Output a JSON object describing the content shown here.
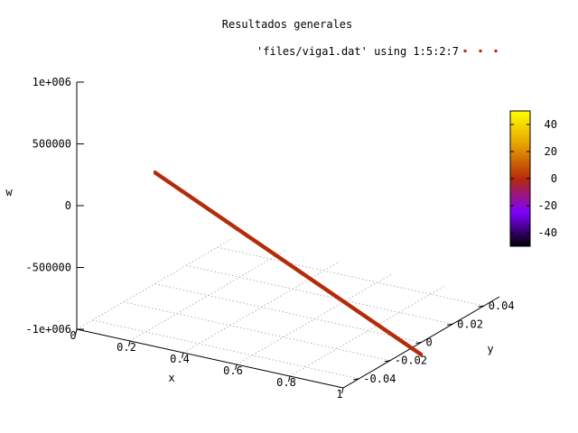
{
  "chart_data": {
    "type": "scatter",
    "title": "Resultados generales",
    "legend": {
      "label": "'files/viga1.dat' using 1:5:2:7",
      "placement": "top-right",
      "color": "#b52a0a"
    },
    "xlabel": "x",
    "ylabel": "y",
    "zlabel": "w",
    "xlim": [
      0,
      1
    ],
    "ylim": [
      -0.05,
      0.05
    ],
    "zlim": [
      -1500000,
      1000000
    ],
    "x_ticks": [
      "0",
      "0.2",
      "0.4",
      "0.6",
      "0.8",
      "1"
    ],
    "y_ticks": [
      "-0.04",
      "-0.02",
      "0",
      "0.02",
      "0.04"
    ],
    "z_ticks": [
      "1e+006",
      "500000",
      "0",
      "-500000",
      "-1e+006"
    ],
    "grid": true,
    "colorbar": {
      "ticks": [
        "40",
        "20",
        "0",
        "-20",
        "-40"
      ],
      "range": [
        -50,
        50
      ],
      "palette": [
        "#000000",
        "#7f00ff",
        "#b52a0a",
        "#e6a000",
        "#ffff00"
      ]
    },
    "series": [
      {
        "name": "'files/viga1.dat' using 1:5:2:7",
        "x": [
          0,
          0.05,
          0.1,
          0.15,
          0.2,
          0.25,
          0.3,
          0.35,
          0.4,
          0.45,
          0.5,
          0.55,
          0.6,
          0.65,
          0.7,
          0.75,
          0.8,
          0.85,
          0.9,
          0.95,
          1
        ],
        "y": [
          0,
          0,
          0,
          0,
          0,
          0,
          0,
          0,
          0,
          0,
          0,
          0,
          0,
          0,
          0,
          0,
          0,
          0,
          0,
          0,
          0
        ],
        "z": [
          900000,
          850000,
          800000,
          750000,
          700000,
          650000,
          600000,
          550000,
          500000,
          450000,
          400000,
          350000,
          300000,
          250000,
          200000,
          150000,
          100000,
          50000,
          0,
          -50000,
          -100000
        ],
        "color_value": [
          0,
          0,
          0,
          0,
          0,
          0,
          0,
          0,
          0,
          0,
          0,
          0,
          0,
          0,
          0,
          0,
          0,
          0,
          0,
          0,
          0
        ]
      }
    ]
  }
}
